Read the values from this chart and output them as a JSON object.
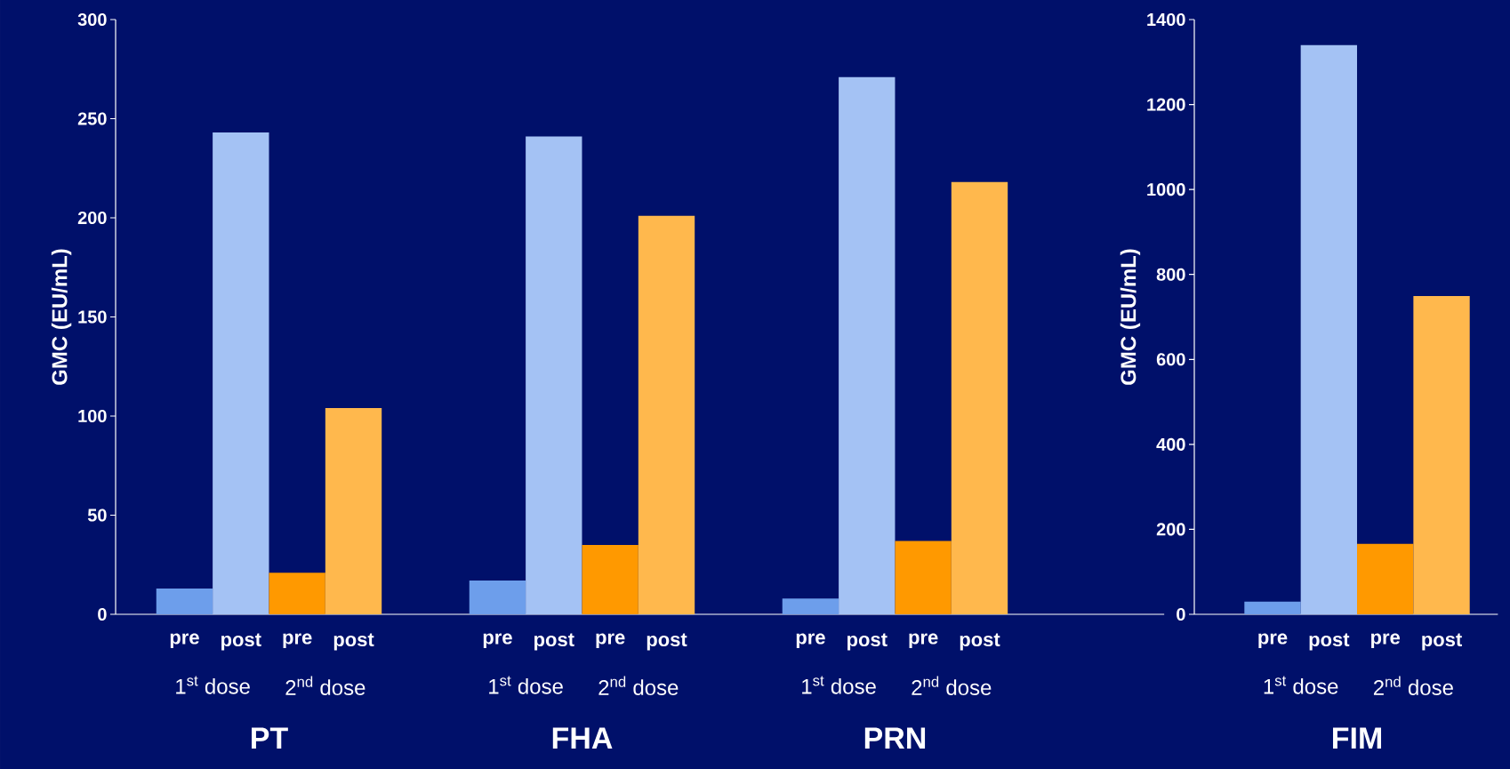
{
  "chart_data": [
    {
      "type": "bar",
      "ylabel": "GMC (EU/mL)",
      "categories": [
        "PT",
        "FHA",
        "PRN"
      ],
      "ylim": [
        0,
        300
      ],
      "yticks": [
        0,
        50,
        100,
        150,
        200,
        250,
        300
      ],
      "series": [
        {
          "name": "pre",
          "color": "#6d9eeb",
          "values": [
            13,
            17,
            8
          ]
        },
        {
          "name": "post",
          "color": "#a4c2f4",
          "values": [
            243,
            241,
            271
          ]
        },
        {
          "name": "pre",
          "color": "#ff9900",
          "values": [
            21,
            35,
            37
          ]
        },
        {
          "name": "post",
          "color": "#ffb84d",
          "values": [
            104,
            201,
            218
          ]
        }
      ],
      "annotations": [
        "1$^{st}$ dose",
        "2$^{nd}$ dose",
        "1$^{st}$ dose",
        "2$^{nd}$ dose",
        "1$^{st}$ dose",
        "2$^{nd}$ dose"
      ]
    },
    {
      "type": "bar",
      "ylabel": "GMC (EU/mL)",
      "categories": [
        "FIM"
      ],
      "ylim": [
        0,
        1400
      ],
      "yticks": [
        0,
        200,
        400,
        600,
        800,
        1000,
        1200,
        1400
      ],
      "series": [
        {
          "name": "pre",
          "color": "#6d9eeb",
          "values": [
            30
          ]
        },
        {
          "name": "post",
          "color": "#a4c2f4",
          "values": [
            1340
          ]
        },
        {
          "name": "pre",
          "color": "#ff9900",
          "values": [
            166
          ]
        },
        {
          "name": "post",
          "color": "#ffb84d",
          "values": [
            749
          ]
        }
      ],
      "annotations": [
        "1$^{st}$ dose",
        "2$^{nd}$ dose"
      ]
    }
  ]
}
